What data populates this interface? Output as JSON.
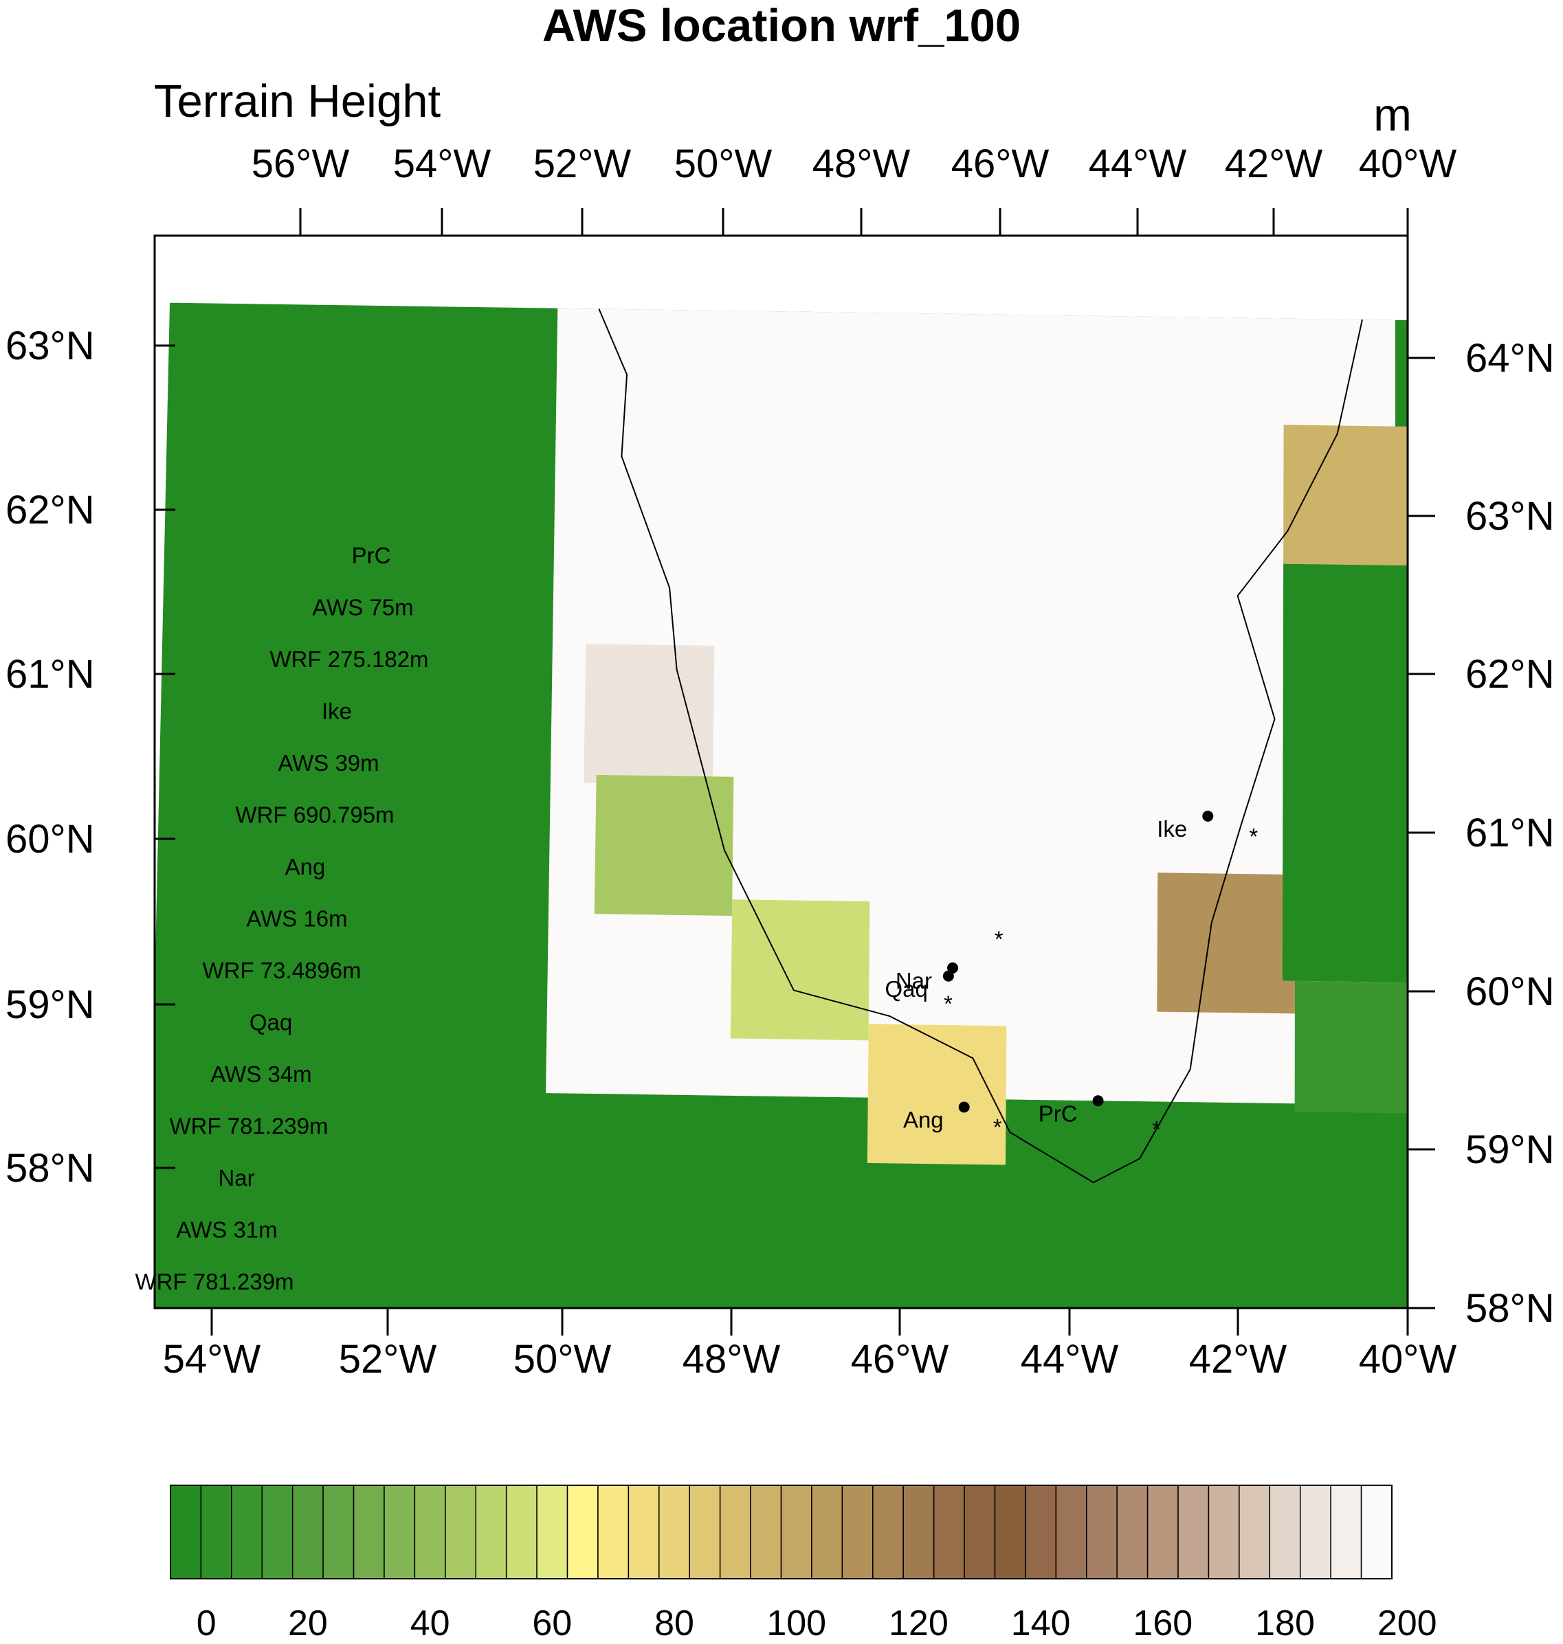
{
  "title": "AWS location wrf_100",
  "left_string": "Terrain Height",
  "right_string": "m",
  "top_lon_ticks": [
    {
      "deg": -56,
      "label": "56°W"
    },
    {
      "deg": -54,
      "label": "54°W"
    },
    {
      "deg": -52,
      "label": "52°W"
    },
    {
      "deg": -50,
      "label": "50°W"
    },
    {
      "deg": -48,
      "label": "48°W"
    },
    {
      "deg": -46,
      "label": "46°W"
    },
    {
      "deg": -44,
      "label": "44°W"
    },
    {
      "deg": -42,
      "label": "42°W"
    },
    {
      "deg": -40,
      "label": "40°W"
    }
  ],
  "bottom_lon_ticks": [
    {
      "deg": -54,
      "label": "54°W"
    },
    {
      "deg": -52,
      "label": "52°W"
    },
    {
      "deg": -50,
      "label": "50°W"
    },
    {
      "deg": -48,
      "label": "48°W"
    },
    {
      "deg": -46,
      "label": "46°W"
    },
    {
      "deg": -44,
      "label": "44°W"
    },
    {
      "deg": -42,
      "label": "42°W"
    },
    {
      "deg": -40,
      "label": "40°W"
    }
  ],
  "left_lat_ticks": [
    {
      "deg": 63,
      "label": "63°N"
    },
    {
      "deg": 62,
      "label": "62°N"
    },
    {
      "deg": 61,
      "label": "61°N"
    },
    {
      "deg": 60,
      "label": "60°N"
    },
    {
      "deg": 59,
      "label": "59°N"
    },
    {
      "deg": 58,
      "label": "58°N"
    }
  ],
  "right_lat_ticks": [
    {
      "deg": 64,
      "label": "64°N"
    },
    {
      "deg": 63,
      "label": "63°N"
    },
    {
      "deg": 62,
      "label": "62°N"
    },
    {
      "deg": 61,
      "label": "61°N"
    },
    {
      "deg": 60,
      "label": "60°N"
    },
    {
      "deg": 59,
      "label": "59°N"
    },
    {
      "deg": 58,
      "label": "58°N"
    }
  ],
  "stations": [
    {
      "name": "Ike",
      "aws_lon": -42.4,
      "aws_lat": 61.05,
      "wrf_lon": -41.85,
      "wrf_lat": 60.95
    },
    {
      "name": "Nar",
      "aws_lon": -45.45,
      "aws_lat": 60.1,
      "wrf_lon": -44.9,
      "wrf_lat": 60.3
    },
    {
      "name": "Qaq",
      "aws_lon": -45.5,
      "aws_lat": 60.05,
      "wrf_lon": -45.5,
      "wrf_lat": 59.9
    },
    {
      "name": "Ang",
      "aws_lon": -45.3,
      "aws_lat": 59.25,
      "wrf_lon": -44.9,
      "wrf_lat": 59.15
    },
    {
      "name": "PrC",
      "aws_lon": -43.7,
      "aws_lat": 59.3,
      "wrf_lon": -43.0,
      "wrf_lat": 59.15
    }
  ],
  "legend_lines": [
    "PrC",
    "AWS 75m",
    "WRF 275.182m",
    "Ike",
    "AWS 39m",
    "WRF 690.795m",
    "Ang",
    "AWS 16m",
    "WRF 73.4896m",
    "Qaq",
    "AWS 34m",
    "WRF 781.239m",
    "Nar",
    "AWS 31m",
    "WRF 781.239m"
  ],
  "colorbar": {
    "min": 0,
    "max": 205,
    "step": 5,
    "labels": [
      "0",
      "20",
      "40",
      "60",
      "80",
      "100",
      "120",
      "140",
      "160",
      "180",
      "200"
    ],
    "colors": [
      "#238b21",
      "#2f8f29",
      "#3c9630",
      "#489b37",
      "#559f3e",
      "#64a646",
      "#74ad4e",
      "#85b655",
      "#96bf5c",
      "#a8c864",
      "#bcd46c",
      "#cede76",
      "#e2ea84",
      "#fff38c",
      "#f9e783",
      "#f0dc7f",
      "#e8d27a",
      "#dfc774",
      "#d6bd6f",
      "#cdb26a",
      "#c4a765",
      "#bb9c5f",
      "#b2915a",
      "#a98654",
      "#a07b4f",
      "#976f49",
      "#8e6443",
      "#8a603c",
      "#93694a",
      "#9c7457",
      "#a57f64",
      "#ae8a71",
      "#b8977f",
      "#c2a590",
      "#cdb4a1",
      "#d8c5b5",
      "#e2d5c9",
      "#ece4dc",
      "#f4efeb",
      "#fbfaf8"
    ]
  },
  "terrain_cells": [
    {
      "v": 0,
      "lon0": -55,
      "lon1": -40,
      "lat0": 57.5,
      "lat1": 64.1
    },
    {
      "v": 205,
      "lon0": -50.3,
      "lon1": -40.15,
      "lat0": 59.3,
      "lat1": 64.1
    },
    {
      "v": 185,
      "lon0": -49.9,
      "lon1": -48.35,
      "lat0": 61.2,
      "lat1": 62.05
    },
    {
      "v": 48,
      "lon0": -49.75,
      "lon1": -48.1,
      "lat0": 60.4,
      "lat1": 61.25
    },
    {
      "v": 58,
      "lon0": -48.1,
      "lon1": -46.45,
      "lat0": 59.65,
      "lat1": 60.5
    },
    {
      "v": 76,
      "lon0": -46.45,
      "lon1": -44.8,
      "lat0": 58.9,
      "lat1": 59.75
    },
    {
      "v": 110,
      "lon0": -43.0,
      "lon1": -41.35,
      "lat0": 59.85,
      "lat1": 60.7
    },
    {
      "v": 95,
      "lon0": -41.5,
      "lon1": -40.0,
      "lat0": 62.6,
      "lat1": 63.45
    },
    {
      "v": 0,
      "lon0": -41.5,
      "lon1": -40.0,
      "lat0": 60.05,
      "lat1": 62.6
    },
    {
      "v": 10,
      "lon0": -41.35,
      "lon1": -40.0,
      "lat0": 59.25,
      "lat1": 60.05
    },
    {
      "v": 0,
      "lon0": -40.15,
      "lon1": -40.0,
      "lat0": 63.85,
      "lat1": 64.1
    }
  ],
  "coastline": [
    [
      -49.8,
      64.1
    ],
    [
      -49.45,
      63.7
    ],
    [
      -49.5,
      63.2
    ],
    [
      -48.9,
      62.4
    ],
    [
      -48.8,
      61.9
    ],
    [
      -48.2,
      60.8
    ],
    [
      -47.35,
      59.95
    ],
    [
      -46.2,
      59.8
    ],
    [
      -45.2,
      59.55
    ],
    [
      -44.75,
      59.1
    ],
    [
      -43.75,
      58.8
    ],
    [
      -43.2,
      58.95
    ],
    [
      -42.6,
      59.5
    ],
    [
      -42.35,
      60.4
    ],
    [
      -42.0,
      61.0
    ],
    [
      -41.6,
      61.65
    ],
    [
      -42.05,
      62.4
    ],
    [
      -41.45,
      62.8
    ],
    [
      -40.85,
      63.4
    ],
    [
      -40.55,
      64.1
    ]
  ]
}
